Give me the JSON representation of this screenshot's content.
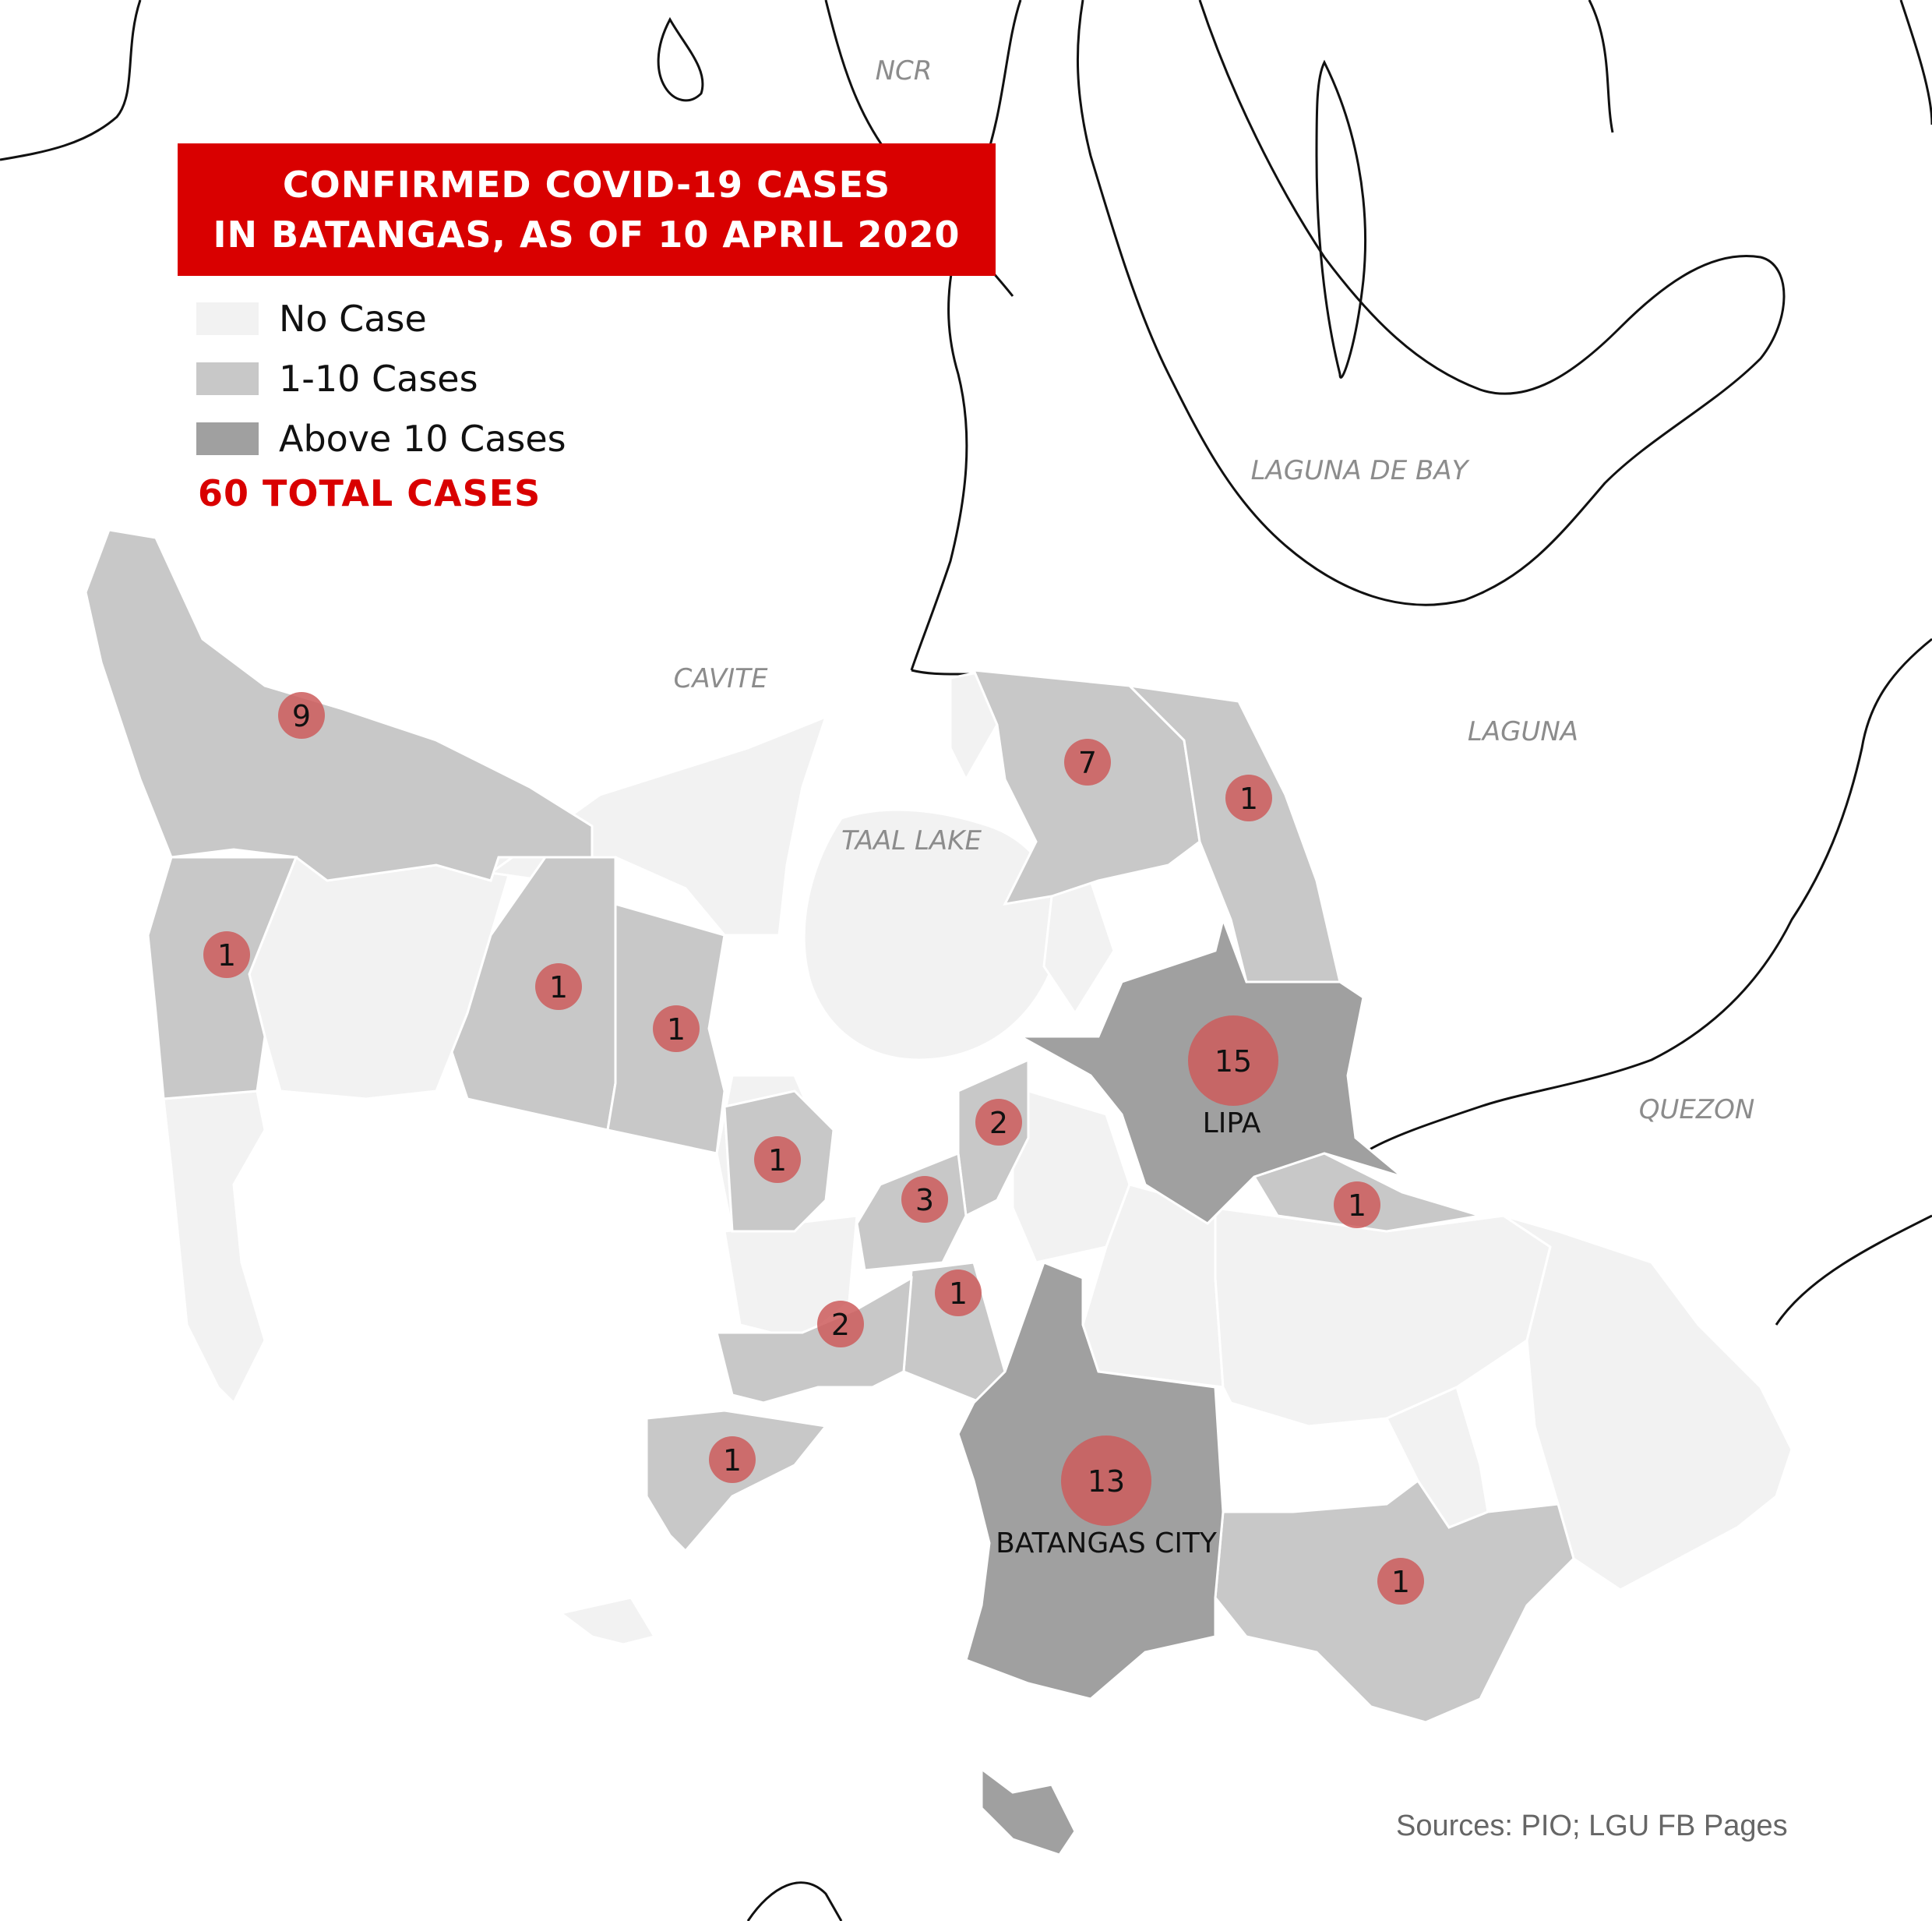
{
  "title": {
    "line1": "CONFIRMED COVID-19 CASES",
    "line2": "IN BATANGAS, AS OF 10 APRIL 2020"
  },
  "legend": {
    "items": [
      {
        "label": "No Case",
        "color": "#f2f2f2"
      },
      {
        "label": "1-10 Cases",
        "color": "#c8c8c8"
      },
      {
        "label": "Above 10 Cases",
        "color": "#a0a0a0"
      }
    ]
  },
  "total_label": "60 TOTAL CASES",
  "source": "Sources: PIO; LGU FB Pages",
  "region_labels": {
    "ncr": "NCR",
    "laguna_de_bay": "LAGUNA DE BAY",
    "cavite": "CAVITE",
    "laguna": "LAGUNA",
    "taal_lake": "TAAL LAKE",
    "quezon": "QUEZON"
  },
  "city_labels": {
    "lipa": "LIPA",
    "batangas_city": "BATANGAS CITY"
  },
  "colors": {
    "no_case": "#f2f2f2",
    "low": "#c8c8c8",
    "high": "#a0a0a0",
    "bubble": "#cd5c5c",
    "title_bg": "#d90000"
  },
  "case_markers": [
    {
      "count": "9"
    },
    {
      "count": "7"
    },
    {
      "count": "1"
    },
    {
      "count": "1"
    },
    {
      "count": "1"
    },
    {
      "count": "1"
    },
    {
      "count": "15"
    },
    {
      "count": "2"
    },
    {
      "count": "1"
    },
    {
      "count": "3"
    },
    {
      "count": "1"
    },
    {
      "count": "1"
    },
    {
      "count": "2"
    },
    {
      "count": "1"
    },
    {
      "count": "13"
    },
    {
      "count": "1"
    }
  ]
}
